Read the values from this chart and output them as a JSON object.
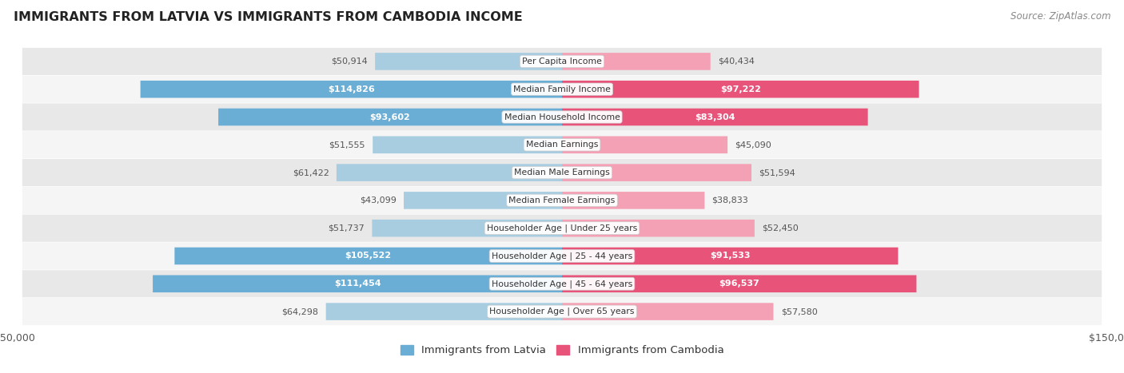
{
  "title": "IMMIGRANTS FROM LATVIA VS IMMIGRANTS FROM CAMBODIA INCOME",
  "source": "Source: ZipAtlas.com",
  "categories": [
    "Per Capita Income",
    "Median Family Income",
    "Median Household Income",
    "Median Earnings",
    "Median Male Earnings",
    "Median Female Earnings",
    "Householder Age | Under 25 years",
    "Householder Age | 25 - 44 years",
    "Householder Age | 45 - 64 years",
    "Householder Age | Over 65 years"
  ],
  "latvia_values": [
    50914,
    114826,
    93602,
    51555,
    61422,
    43099,
    51737,
    105522,
    111454,
    64298
  ],
  "cambodia_values": [
    40434,
    97222,
    83304,
    45090,
    51594,
    38833,
    52450,
    91533,
    96537,
    57580
  ],
  "latvia_labels": [
    "$50,914",
    "$114,826",
    "$93,602",
    "$51,555",
    "$61,422",
    "$43,099",
    "$51,737",
    "$105,522",
    "$111,454",
    "$64,298"
  ],
  "cambodia_labels": [
    "$40,434",
    "$97,222",
    "$83,304",
    "$45,090",
    "$51,594",
    "$38,833",
    "$52,450",
    "$91,533",
    "$96,537",
    "$57,580"
  ],
  "max_value": 150000,
  "latvia_color_large": "#6aaed6",
  "latvia_color_small": "#a8cde0",
  "cambodia_color_large": "#e8537a",
  "cambodia_color_small": "#f4a0b5",
  "label_inside_color": "#ffffff",
  "label_outside_color": "#555555",
  "background_color": "#ffffff",
  "row_bg_even": "#e8e8e8",
  "row_bg_odd": "#f5f5f5",
  "bar_height": 0.62,
  "inside_threshold": 65000,
  "legend_latvia": "Immigrants from Latvia",
  "legend_cambodia": "Immigrants from Cambodia"
}
